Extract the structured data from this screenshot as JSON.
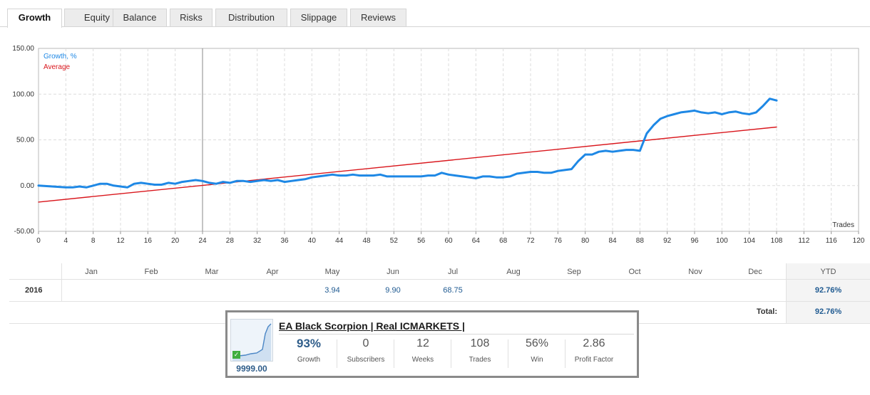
{
  "tabs": [
    "Growth",
    "Equity",
    "Balance",
    "Risks",
    "Distribution",
    "Slippage",
    "Reviews"
  ],
  "active_tab": "Growth",
  "chart_data": {
    "type": "line",
    "xlabel": "Trades",
    "xlim": [
      0,
      120
    ],
    "ylim": [
      -50,
      150
    ],
    "x_ticks": [
      0,
      4,
      8,
      12,
      16,
      20,
      24,
      28,
      32,
      36,
      40,
      44,
      48,
      52,
      56,
      60,
      64,
      68,
      72,
      76,
      80,
      84,
      88,
      92,
      96,
      100,
      104,
      108,
      112,
      116,
      120
    ],
    "y_ticks": [
      "-50.00",
      "0.00",
      "50.00",
      "100.00",
      "150.00"
    ],
    "y_tick_values": [
      -50,
      0,
      50,
      100,
      150
    ],
    "grid": true,
    "legend_position": "top-left",
    "marker_x": 24,
    "series": [
      {
        "name": "Growth, %",
        "color": "#1e88e5",
        "x": [
          0,
          2,
          4,
          5,
          6,
          7,
          8,
          9,
          10,
          11,
          12,
          13,
          14,
          15,
          16,
          17,
          18,
          19,
          20,
          21,
          22,
          23,
          24,
          25,
          26,
          27,
          28,
          29,
          30,
          31,
          32,
          33,
          34,
          35,
          36,
          37,
          38,
          39,
          40,
          41,
          42,
          43,
          44,
          45,
          46,
          47,
          48,
          49,
          50,
          51,
          52,
          53,
          54,
          55,
          56,
          57,
          58,
          59,
          60,
          61,
          62,
          63,
          64,
          65,
          66,
          67,
          68,
          69,
          70,
          71,
          72,
          73,
          74,
          75,
          76,
          77,
          78,
          79,
          80,
          81,
          82,
          83,
          84,
          85,
          86,
          87,
          88,
          89,
          90,
          91,
          92,
          93,
          94,
          95,
          96,
          97,
          98,
          99,
          100,
          101,
          102,
          103,
          104,
          105,
          106,
          107,
          108
        ],
        "y": [
          0,
          -1,
          -2,
          -2,
          -1,
          -2,
          0,
          2,
          2,
          0,
          -1,
          -2,
          2,
          3,
          2,
          1,
          1,
          3,
          2,
          4,
          5,
          6,
          5,
          3,
          2,
          4,
          3,
          5,
          5,
          4,
          5,
          6,
          5,
          6,
          4,
          5,
          6,
          7,
          9,
          10,
          11,
          12,
          11,
          11,
          12,
          11,
          11,
          11,
          12,
          10,
          10,
          10,
          10,
          10,
          10,
          11,
          11,
          14,
          12,
          11,
          10,
          9,
          8,
          10,
          10,
          9,
          9,
          10,
          13,
          14,
          15,
          15,
          14,
          14,
          16,
          17,
          18,
          27,
          34,
          34,
          37,
          38,
          37,
          38,
          39,
          39,
          38,
          57,
          66,
          73,
          76,
          78,
          80,
          81,
          82,
          80,
          79,
          80,
          78,
          80,
          81,
          79,
          78,
          80,
          87,
          95,
          93
        ],
        "values_note": ""
      },
      {
        "name": "Average",
        "color": "#d9161c",
        "x": [
          0,
          108
        ],
        "y": [
          -18,
          64
        ]
      }
    ]
  },
  "table": {
    "months": [
      "Jan",
      "Feb",
      "Mar",
      "Apr",
      "May",
      "Jun",
      "Jul",
      "Aug",
      "Sep",
      "Oct",
      "Nov",
      "Dec"
    ],
    "ytd_label": "YTD",
    "rows": [
      {
        "year": "2016",
        "values": [
          "",
          "",
          "",
          "",
          "3.94",
          "9.90",
          "68.75",
          "",
          "",
          "",
          "",
          ""
        ],
        "ytd": "92.76%"
      }
    ],
    "total_label": "Total:",
    "total_value": "92.76%"
  },
  "widget": {
    "title": "EA Black Scorpion | Real ICMARKETS |",
    "price": "9999.00",
    "stats": [
      {
        "value": "93%",
        "label": "Growth"
      },
      {
        "value": "0",
        "label": "Subscribers"
      },
      {
        "value": "12",
        "label": "Weeks"
      },
      {
        "value": "108",
        "label": "Trades"
      },
      {
        "value": "56%",
        "label": "Win"
      },
      {
        "value": "2.86",
        "label": "Profit Factor"
      }
    ]
  }
}
